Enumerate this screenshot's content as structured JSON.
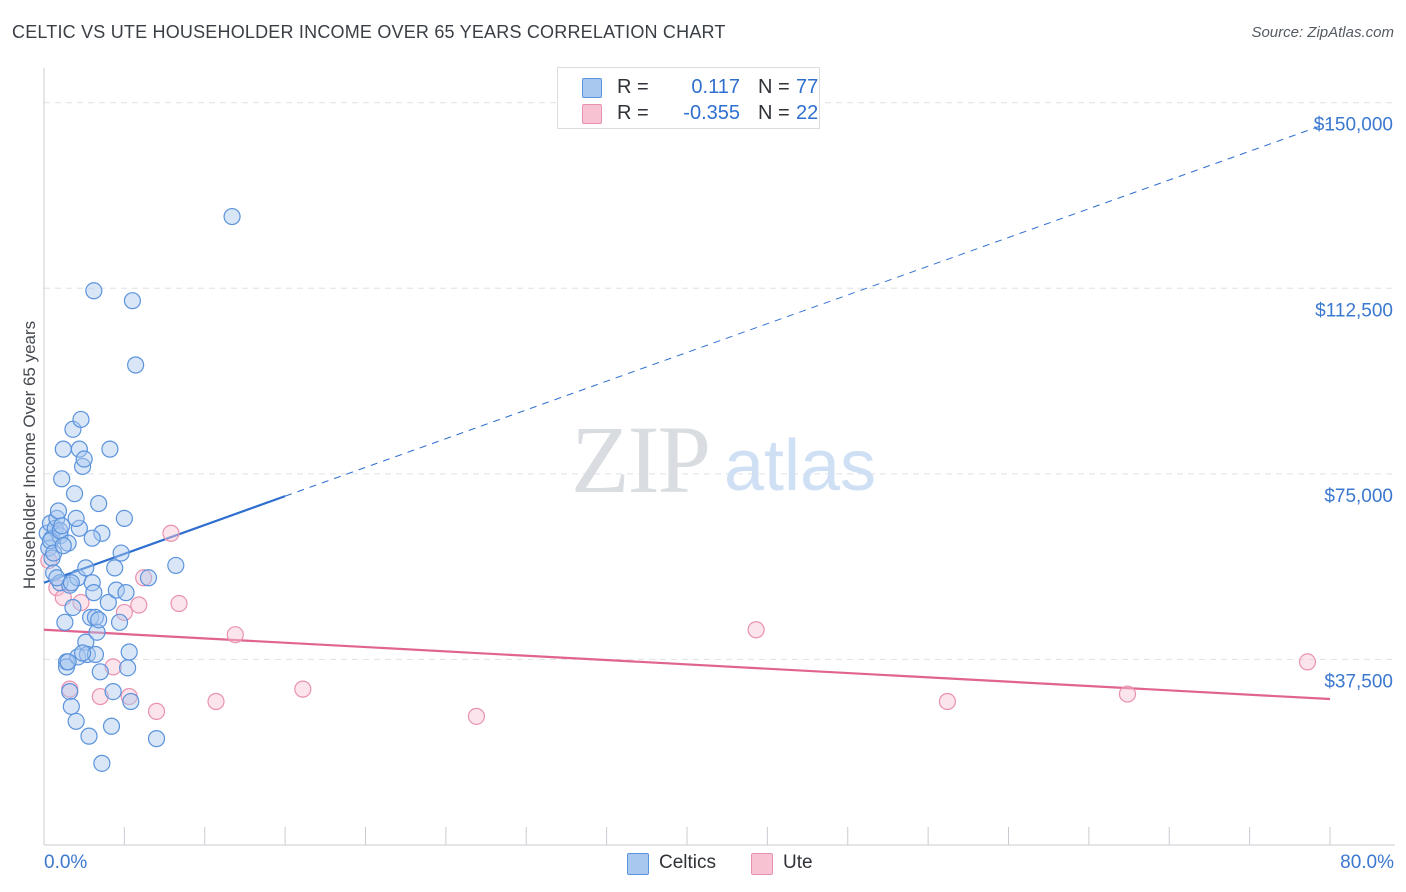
{
  "header": {
    "title": "CELTIC VS UTE HOUSEHOLDER INCOME OVER 65 YEARS CORRELATION CHART",
    "source": "Source: ZipAtlas.com"
  },
  "legend": {
    "rows": [
      {
        "r_label": "R =",
        "r_value": "0.117",
        "n_label": "N =",
        "n_value": "77"
      },
      {
        "r_label": "R =",
        "r_value": "-0.355",
        "n_label": "N =",
        "n_value": "22"
      }
    ],
    "series": [
      {
        "name": "Celtics"
      },
      {
        "name": "Ute"
      }
    ]
  },
  "watermark": {
    "left": "ZIP",
    "right": "atlas"
  },
  "colors": {
    "celtics_fill": "#a9c8f0",
    "celtics_stroke": "#5b93dc",
    "celtics_line": "#2f6fcf",
    "ute_fill": "#f7c3d3",
    "ute_stroke": "#e992b0",
    "ute_line": "#e0648f",
    "grid": "#dde1e6",
    "tick_text": "#3b78d0"
  },
  "chart_data": {
    "type": "scatter",
    "title": "CELTIC VS UTE HOUSEHOLDER INCOME OVER 65 YEARS CORRELATION CHART",
    "xlabel": "",
    "ylabel": "Householder Income Over 65 years",
    "xlim": [
      0,
      80
    ],
    "ylim": [
      0,
      155000
    ],
    "x_tick_labels": [
      "0.0%",
      "80.0%"
    ],
    "y_ticks": [
      37500,
      75000,
      112500,
      150000
    ],
    "y_tick_labels": [
      "$37,500",
      "$75,000",
      "$112,500",
      "$150,000"
    ],
    "series": [
      {
        "name": "Celtics",
        "r": 0.117,
        "n": 77,
        "trend": {
          "x0": 0,
          "y0": 53000,
          "x_solid_end": 15,
          "y_solid_end": 70500,
          "x1": 80,
          "y1": 146000
        },
        "points": [
          [
            0.2,
            63000
          ],
          [
            0.3,
            60000
          ],
          [
            0.4,
            65000
          ],
          [
            0.5,
            62000
          ],
          [
            0.5,
            58000
          ],
          [
            0.6,
            55000
          ],
          [
            0.7,
            64000
          ],
          [
            0.8,
            66000
          ],
          [
            0.9,
            67500
          ],
          [
            1.0,
            62500
          ],
          [
            1.0,
            53000
          ],
          [
            1.1,
            74000
          ],
          [
            1.2,
            80000
          ],
          [
            1.3,
            45000
          ],
          [
            1.4,
            37000
          ],
          [
            1.4,
            36000
          ],
          [
            1.5,
            61000
          ],
          [
            1.6,
            31000
          ],
          [
            1.6,
            52500
          ],
          [
            1.7,
            28000
          ],
          [
            1.8,
            48000
          ],
          [
            1.8,
            84000
          ],
          [
            1.9,
            71000
          ],
          [
            2.0,
            25000
          ],
          [
            2.1,
            54000
          ],
          [
            2.1,
            38000
          ],
          [
            2.2,
            64000
          ],
          [
            2.2,
            80000
          ],
          [
            2.3,
            86000
          ],
          [
            2.4,
            76500
          ],
          [
            2.5,
            78000
          ],
          [
            2.6,
            41000
          ],
          [
            2.6,
            56000
          ],
          [
            2.7,
            38500
          ],
          [
            2.8,
            22000
          ],
          [
            2.9,
            46000
          ],
          [
            3.0,
            53000
          ],
          [
            3.1,
            112000
          ],
          [
            3.1,
            51000
          ],
          [
            3.2,
            46000
          ],
          [
            3.3,
            43000
          ],
          [
            3.4,
            69000
          ],
          [
            3.5,
            35000
          ],
          [
            3.6,
            63000
          ],
          [
            3.2,
            38500
          ],
          [
            3.4,
            45500
          ],
          [
            3.6,
            16500
          ],
          [
            4.0,
            49000
          ],
          [
            4.1,
            80000
          ],
          [
            4.2,
            24000
          ],
          [
            4.3,
            31000
          ],
          [
            4.4,
            56000
          ],
          [
            4.5,
            51500
          ],
          [
            4.7,
            45000
          ],
          [
            4.8,
            59000
          ],
          [
            5.0,
            66000
          ],
          [
            5.1,
            51000
          ],
          [
            5.2,
            35800
          ],
          [
            5.3,
            39000
          ],
          [
            5.4,
            29000
          ],
          [
            5.5,
            110000
          ],
          [
            5.7,
            97000
          ],
          [
            6.5,
            54000
          ],
          [
            8.2,
            56500
          ],
          [
            11.7,
            127000
          ],
          [
            0.4,
            61500
          ],
          [
            0.6,
            59000
          ],
          [
            0.8,
            54000
          ],
          [
            1.0,
            63500
          ],
          [
            1.2,
            60500
          ],
          [
            1.5,
            37000
          ],
          [
            1.7,
            53000
          ],
          [
            2.0,
            66000
          ],
          [
            2.4,
            38800
          ],
          [
            3.0,
            62000
          ],
          [
            1.1,
            64500
          ],
          [
            7.0,
            21500
          ]
        ]
      },
      {
        "name": "Ute",
        "r": -0.355,
        "n": 22,
        "trend": {
          "x0": 0,
          "y0": 43500,
          "x1": 80,
          "y1": 29500
        },
        "points": [
          [
            0.3,
            57500
          ],
          [
            0.8,
            52000
          ],
          [
            1.2,
            50000
          ],
          [
            1.6,
            31500
          ],
          [
            2.3,
            49000
          ],
          [
            3.5,
            30000
          ],
          [
            4.3,
            36000
          ],
          [
            5.0,
            47000
          ],
          [
            5.3,
            30000
          ],
          [
            5.9,
            48500
          ],
          [
            6.2,
            54000
          ],
          [
            7.0,
            27000
          ],
          [
            7.9,
            63000
          ],
          [
            8.4,
            48800
          ],
          [
            10.7,
            29000
          ],
          [
            11.9,
            42500
          ],
          [
            16.1,
            31500
          ],
          [
            26.9,
            26000
          ],
          [
            44.3,
            43500
          ],
          [
            56.2,
            29000
          ],
          [
            67.4,
            30500
          ],
          [
            78.6,
            37000
          ]
        ]
      }
    ]
  }
}
